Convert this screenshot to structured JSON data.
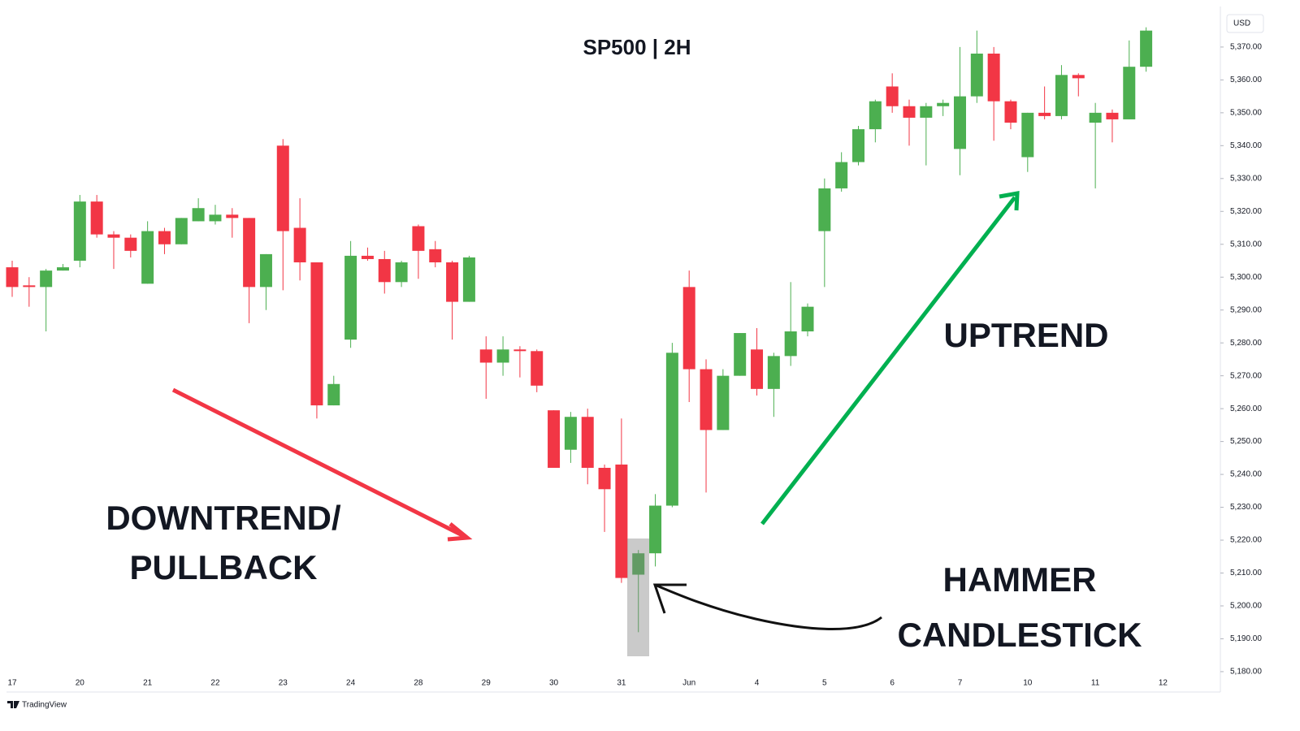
{
  "chart_data": {
    "type": "candlestick",
    "title": "SP500 | 2H",
    "currency": "USD",
    "categories": [
      "17",
      null,
      null,
      null,
      "20",
      null,
      null,
      null,
      "21",
      null,
      null,
      null,
      "22",
      null,
      null,
      null,
      "23",
      null,
      null,
      null,
      "24",
      null,
      null,
      null,
      "28",
      null,
      null,
      null,
      "29",
      null,
      null,
      null,
      "30",
      null,
      null,
      null,
      "31",
      null,
      null,
      null,
      "Jun",
      null,
      null,
      null,
      "4",
      null,
      null,
      null,
      "5",
      null,
      null,
      null,
      "6",
      null,
      null,
      null,
      "7",
      null,
      null,
      null,
      "10",
      null,
      null,
      null,
      "11",
      null,
      null,
      null,
      "12"
    ],
    "open": [
      5303,
      5297.5,
      5297,
      5302,
      5305,
      5323,
      5313,
      5312,
      5298,
      5314,
      5310,
      5317,
      5317,
      5319,
      5318,
      5297,
      5340,
      5315,
      5304.5,
      5261,
      5281,
      5306.5,
      5305.5,
      5298.5,
      5315.5,
      5308.5,
      5304.5,
      5292.5,
      5278,
      5274,
      5278,
      5277.5,
      5259.5,
      5247.5,
      5257.5,
      5242,
      5243,
      5209.5,
      5216,
      5230.5,
      5297,
      5272,
      5253.5,
      5270,
      5278,
      5266,
      5276,
      5283.5,
      5314,
      5327,
      5335,
      5345,
      5358,
      5352,
      5348.5,
      5352,
      5339,
      5355,
      5368,
      5353.5,
      5336.5,
      5350,
      5349,
      5361.5,
      5347,
      5350,
      5348,
      5364,
      null
    ],
    "high": [
      5305,
      5300,
      5302.5,
      5304,
      5325,
      5325,
      5314,
      5313,
      5317,
      5315,
      5318,
      5324,
      5322,
      5321,
      5318,
      5307,
      5342,
      5324,
      5304.5,
      5270,
      5311,
      5309,
      5308,
      5305,
      5316,
      5311,
      5305,
      5306.5,
      5282,
      5282,
      5279,
      5278,
      5259.5,
      5259,
      5260,
      5243,
      5257,
      5217,
      5234,
      5280,
      5302,
      5275,
      5272,
      5283,
      5284.5,
      5277,
      5298.5,
      5292,
      5330,
      5338,
      5346,
      5354,
      5362,
      5354,
      5353,
      5354,
      5370,
      5375,
      5370,
      5354,
      5350,
      5358,
      5364.5,
      5362,
      5353,
      5351,
      5372,
      5376,
      null
    ],
    "low": [
      5294,
      5291,
      5283.5,
      5302,
      5303,
      5312,
      5302.5,
      5306,
      5298,
      5307,
      5310,
      5317,
      5316,
      5312,
      5286,
      5290,
      5296,
      5299,
      5257,
      5261,
      5278.5,
      5305,
      5295,
      5297,
      5299.5,
      5303,
      5281,
      5292.5,
      5263,
      5270,
      5269.5,
      5265,
      5242,
      5243.5,
      5237,
      5222.5,
      5207,
      5192,
      5212,
      5230,
      5262,
      5234.5,
      5253.5,
      5270,
      5264,
      5257.5,
      5273,
      5282,
      5297,
      5326,
      5334,
      5341,
      5350,
      5340,
      5334,
      5349,
      5331,
      5353,
      5341.5,
      5345,
      5332,
      5348,
      5348,
      5355,
      5327,
      5341,
      5348,
      5362.5,
      null
    ],
    "close": [
      5297,
      5297,
      5302,
      5303,
      5323,
      5313,
      5312,
      5308,
      5314,
      5310,
      5318,
      5321,
      5319,
      5318,
      5297,
      5307,
      5314,
      5304.5,
      5261,
      5267.5,
      5306.5,
      5305.5,
      5298.5,
      5304.5,
      5308,
      5304.5,
      5292.5,
      5306,
      5274,
      5278,
      5277.5,
      5267,
      5242,
      5257.5,
      5242,
      5235.5,
      5208.5,
      5216,
      5230.5,
      5277,
      5272,
      5253.5,
      5270,
      5283,
      5266,
      5276,
      5283.5,
      5291,
      5327,
      5335,
      5345,
      5353.5,
      5352,
      5348.5,
      5352,
      5353,
      5355,
      5368,
      5353.5,
      5347,
      5350,
      5349,
      5361.5,
      5360.5,
      5350,
      5348,
      5364,
      5375,
      null
    ],
    "up_color": "#4caf50",
    "down_color": "#f23645",
    "ylim": [
      5174.3,
      5380.6
    ],
    "yticks": [
      {
        "value": 5180,
        "label": "5,180.00"
      },
      {
        "value": 5190,
        "label": "5,190.00"
      },
      {
        "value": 5200,
        "label": "5,200.00"
      },
      {
        "value": 5210,
        "label": "5,210.00"
      },
      {
        "value": 5220,
        "label": "5,220.00"
      },
      {
        "value": 5230,
        "label": "5,230.00"
      },
      {
        "value": 5240,
        "label": "5,240.00"
      },
      {
        "value": 5250,
        "label": "5,250.00"
      },
      {
        "value": 5260,
        "label": "5,260.00"
      },
      {
        "value": 5270,
        "label": "5,270.00"
      },
      {
        "value": 5280,
        "label": "5,280.00"
      },
      {
        "value": 5290,
        "label": "5,290.00"
      },
      {
        "value": 5300,
        "label": "5,300.00"
      },
      {
        "value": 5310,
        "label": "5,310.00"
      },
      {
        "value": 5320,
        "label": "5,320.00"
      },
      {
        "value": 5330,
        "label": "5,330.00"
      },
      {
        "value": 5340,
        "label": "5,340.00"
      },
      {
        "value": 5350,
        "label": "5,350.00"
      },
      {
        "value": 5360,
        "label": "5,360.00"
      },
      {
        "value": 5370,
        "label": "5,370.00"
      }
    ],
    "grid": false,
    "annotations": [
      "DOWNTREND/",
      "PULLBACK",
      "UPTREND",
      "HAMMER",
      "CANDLESTICK"
    ],
    "watermark": "TradingView"
  }
}
